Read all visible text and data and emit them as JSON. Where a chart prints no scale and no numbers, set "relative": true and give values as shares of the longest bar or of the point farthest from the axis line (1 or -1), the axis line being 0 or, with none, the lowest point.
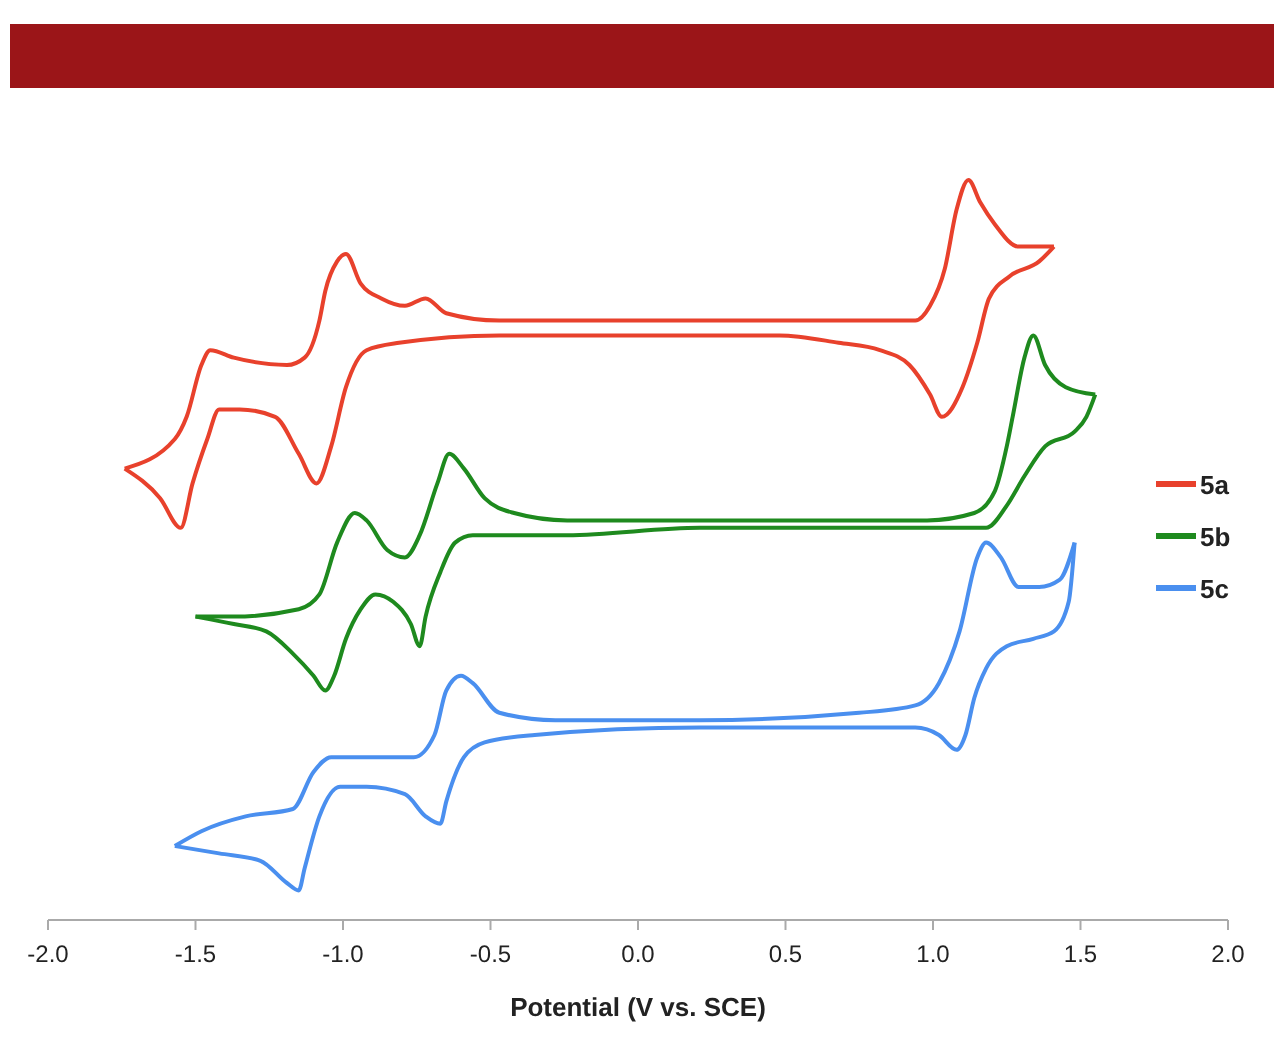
{
  "chart_data": {
    "type": "line",
    "relative": true,
    "xlabel": "Potential (V vs. SCE)",
    "xlim": [
      -2,
      2
    ],
    "xticks": [
      {
        "value": -2,
        "label": "-2.0"
      },
      {
        "value": -1.5,
        "label": "-1.5"
      },
      {
        "value": -1,
        "label": "-1.0"
      },
      {
        "value": -0.5,
        "label": "-0.5"
      },
      {
        "value": 0,
        "label": "0.0"
      },
      {
        "value": 0.5,
        "label": "0.5"
      },
      {
        "value": 1,
        "label": "1.0"
      },
      {
        "value": 1.5,
        "label": "1.5"
      },
      {
        "value": 2,
        "label": "2.0"
      }
    ],
    "grid": false,
    "legend": "right",
    "marker": "none",
    "line_style": "solid",
    "series": [
      {
        "name": "5a",
        "color": "#e8412c",
        "x": [
          -1.74,
          -1.57,
          -1.53,
          -1.48,
          -1.45,
          -1.37,
          -1.19,
          -1.13,
          -1.08,
          -1.06,
          -1.02,
          -0.99,
          -0.94,
          -0.87,
          -0.79,
          -0.72,
          -0.65,
          -0.47,
          0.0,
          0.55,
          0.94,
          0.99,
          1.04,
          1.08,
          1.12,
          1.16,
          1.21,
          1.29,
          1.41
        ],
        "values": [
          0.61,
          0.65,
          0.68,
          0.75,
          0.77,
          0.76,
          0.75,
          0.76,
          0.81,
          0.85,
          0.89,
          0.9,
          0.86,
          0.84,
          0.83,
          0.84,
          0.82,
          0.81,
          0.81,
          0.81,
          0.81,
          0.83,
          0.88,
          0.96,
          1.0,
          0.97,
          0.94,
          0.91,
          0.91
        ]
      },
      {
        "color": "#e8412c",
        "x": [
          -1.74,
          -1.62,
          -1.55,
          -1.51,
          -1.46,
          -1.42,
          -1.35,
          -1.23,
          -1.15,
          -1.09,
          -1.04,
          -0.99,
          -0.92,
          -0.81,
          -0.47,
          0.0,
          0.48,
          0.68,
          0.82,
          0.92,
          0.99,
          1.03,
          1.1,
          1.15,
          1.19,
          1.26,
          1.36,
          1.41
        ],
        "values": [
          0.61,
          0.57,
          0.53,
          0.59,
          0.65,
          0.69,
          0.69,
          0.68,
          0.63,
          0.59,
          0.64,
          0.72,
          0.77,
          0.78,
          0.79,
          0.79,
          0.79,
          0.78,
          0.77,
          0.75,
          0.71,
          0.68,
          0.72,
          0.78,
          0.84,
          0.87,
          0.89,
          0.91
        ]
      },
      {
        "name": "5b",
        "color": "#1e8a1e",
        "x": [
          -1.5,
          -1.37,
          -1.15,
          -1.08,
          -1.02,
          -0.96,
          -0.92,
          -0.85,
          -0.79,
          -0.74,
          -0.68,
          -0.64,
          -0.59,
          -0.52,
          -0.42,
          -0.24,
          0.21,
          0.98,
          1.14,
          1.21,
          1.25,
          1.27,
          1.31,
          1.34,
          1.38,
          1.45,
          1.55
        ],
        "values": [
          0.41,
          0.41,
          0.42,
          0.44,
          0.51,
          0.55,
          0.54,
          0.5,
          0.49,
          0.52,
          0.59,
          0.63,
          0.61,
          0.57,
          0.55,
          0.54,
          0.54,
          0.54,
          0.55,
          0.58,
          0.64,
          0.68,
          0.76,
          0.79,
          0.75,
          0.72,
          0.71
        ]
      },
      {
        "color": "#1e8a1e",
        "x": [
          -1.5,
          -1.37,
          -1.26,
          -1.17,
          -1.1,
          -1.06,
          -1.03,
          -0.99,
          -0.94,
          -0.89,
          -0.83,
          -0.77,
          -0.74,
          -0.72,
          -0.67,
          -0.62,
          -0.56,
          -0.47,
          -0.24,
          0.21,
          0.98,
          1.18,
          1.25,
          1.31,
          1.38,
          1.48,
          1.52,
          1.55
        ],
        "values": [
          0.41,
          0.4,
          0.39,
          0.36,
          0.33,
          0.31,
          0.33,
          0.38,
          0.42,
          0.44,
          0.43,
          0.4,
          0.37,
          0.41,
          0.47,
          0.51,
          0.52,
          0.52,
          0.52,
          0.53,
          0.53,
          0.53,
          0.56,
          0.6,
          0.64,
          0.66,
          0.68,
          0.71
        ]
      },
      {
        "name": "5c",
        "color": "#4a8fef",
        "x": [
          -1.57,
          -1.48,
          -1.33,
          -1.17,
          -1.1,
          -1.04,
          -0.92,
          -0.76,
          -0.69,
          -0.65,
          -0.6,
          -0.56,
          -0.47,
          -0.28,
          0.21,
          0.75,
          0.94,
          1.02,
          1.09,
          1.15,
          1.18,
          1.23,
          1.29,
          1.36,
          1.43,
          1.48
        ],
        "values": [
          0.1,
          0.12,
          0.14,
          0.15,
          0.2,
          0.22,
          0.22,
          0.22,
          0.25,
          0.31,
          0.33,
          0.32,
          0.28,
          0.27,
          0.27,
          0.28,
          0.29,
          0.32,
          0.39,
          0.49,
          0.51,
          0.49,
          0.45,
          0.45,
          0.46,
          0.51
        ]
      },
      {
        "color": "#4a8fef",
        "x": [
          -1.57,
          -1.42,
          -1.28,
          -1.19,
          -1.15,
          -1.13,
          -1.08,
          -1.01,
          -0.92,
          -0.79,
          -0.72,
          -0.67,
          -0.65,
          -0.59,
          -0.52,
          -0.35,
          0.21,
          0.75,
          0.94,
          1.02,
          1.08,
          1.11,
          1.14,
          1.18,
          1.25,
          1.34,
          1.41,
          1.46,
          1.48
        ],
        "values": [
          0.1,
          0.09,
          0.08,
          0.05,
          0.04,
          0.07,
          0.14,
          0.18,
          0.18,
          0.17,
          0.14,
          0.13,
          0.16,
          0.22,
          0.24,
          0.25,
          0.26,
          0.26,
          0.26,
          0.25,
          0.23,
          0.25,
          0.3,
          0.34,
          0.37,
          0.38,
          0.39,
          0.43,
          0.51
        ]
      }
    ]
  }
}
